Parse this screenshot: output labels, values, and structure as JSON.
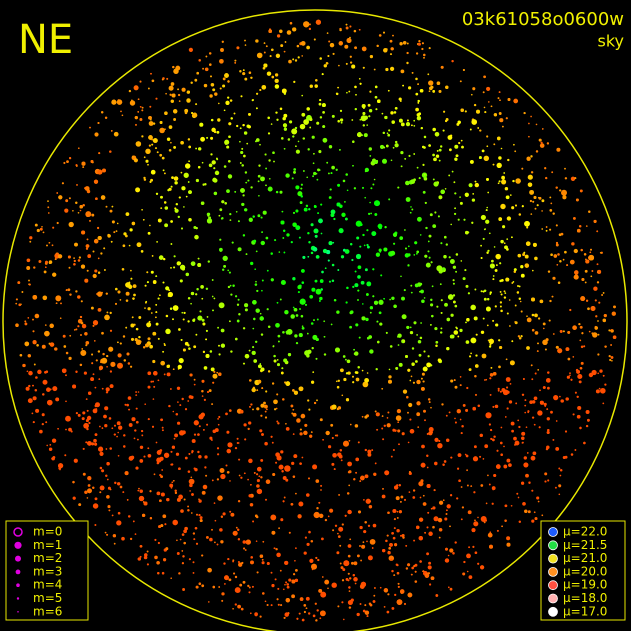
{
  "header": {
    "direction": "NE",
    "frame_id": "03k61058o0600w",
    "mode": "sky"
  },
  "magnitude_legend": {
    "items": [
      "m=0",
      "m=1",
      "m=2",
      "m=3",
      "m=4",
      "m=5",
      "m=6"
    ]
  },
  "brightness_legend": {
    "items": [
      {
        "label": "μ=22.0",
        "color": "#1e5cff"
      },
      {
        "label": "μ=21.5",
        "color": "#22dd44"
      },
      {
        "label": "μ=21.0",
        "color": "#f0e020"
      },
      {
        "label": "μ=20.0",
        "color": "#ff9020"
      },
      {
        "label": "μ=19.0",
        "color": "#ff5040"
      },
      {
        "label": "μ=18.0",
        "color": "#ffb0b0"
      },
      {
        "label": "μ=17.0",
        "color": "#ffffff"
      }
    ]
  }
}
